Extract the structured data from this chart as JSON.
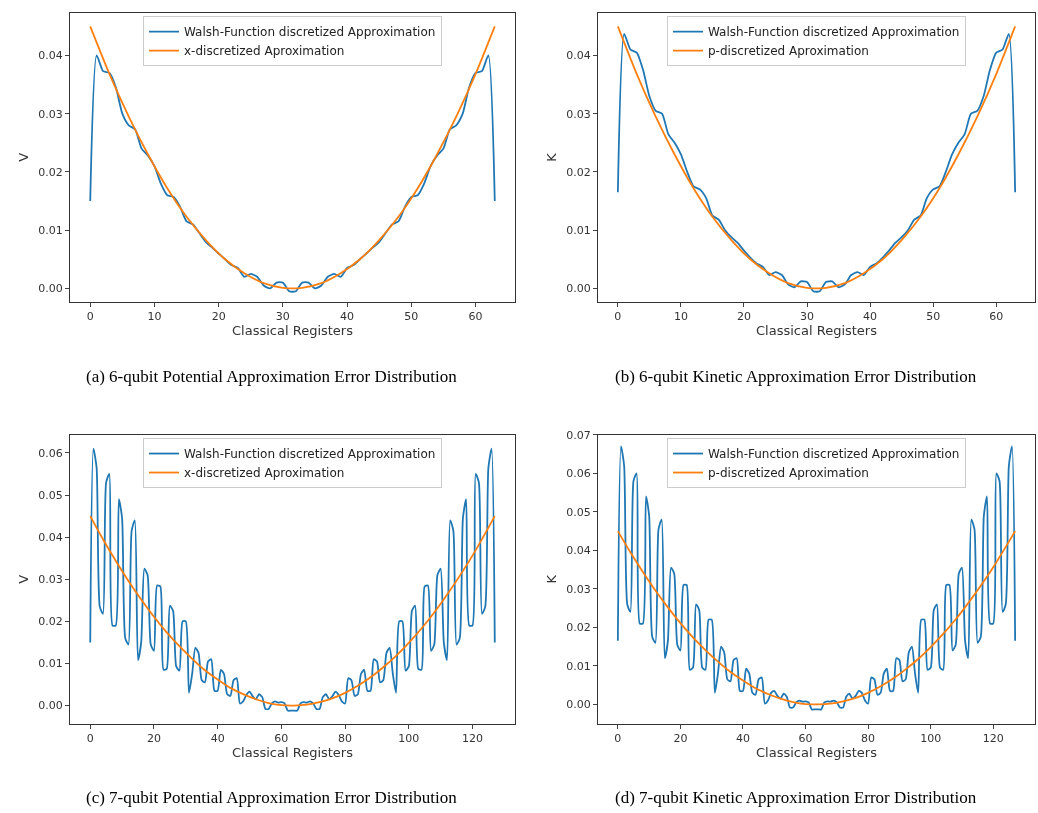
{
  "chart_data": [
    {
      "type": "line",
      "xlabel": "Classical Registers",
      "ylabel": "V",
      "xlim": [
        -3.15,
        66.15
      ],
      "xticks": [
        0,
        10,
        20,
        30,
        40,
        50,
        60
      ],
      "ylim": [
        -0.0023,
        0.0473
      ],
      "yticks": [
        {
          "value": 0,
          "label": "0.00"
        },
        {
          "value": 0.01,
          "label": "0.01"
        },
        {
          "value": 0.02,
          "label": "0.02"
        },
        {
          "value": 0.03,
          "label": "0.03"
        },
        {
          "value": 0.04,
          "label": "0.04"
        }
      ],
      "legend": "top",
      "annotations": [
        "(a) 6-qubit Potential Approximation Error Distribution"
      ],
      "x": [
        0,
        1,
        2,
        3,
        4,
        5,
        6,
        7,
        8,
        9,
        10,
        11,
        12,
        13,
        14,
        15,
        16,
        17,
        18,
        19,
        20,
        21,
        22,
        23,
        24,
        25,
        26,
        27,
        28,
        29,
        30,
        31,
        32,
        33,
        34,
        35,
        36,
        37,
        38,
        39,
        40,
        41,
        42,
        43,
        44,
        45,
        46,
        47,
        48,
        49,
        50,
        51,
        52,
        53,
        54,
        55,
        56,
        57,
        58,
        59,
        60,
        61,
        62,
        63
      ],
      "series": [
        {
          "name": "Walsh-Function discretized Approximation",
          "color": "#1f77b4",
          "values": [
            0.015,
            0.04,
            0.0373,
            0.037,
            0.0345,
            0.03,
            0.028,
            0.0273,
            0.024,
            0.0228,
            0.021,
            0.018,
            0.016,
            0.0157,
            0.014,
            0.0115,
            0.011,
            0.0095,
            0.008,
            0.007,
            0.006,
            0.005,
            0.004,
            0.0035,
            0.002,
            0.0025,
            0.002,
            0.0005,
            0.0,
            0.001,
            0.001,
            -0.0005,
            -0.0005,
            0.001,
            0.001,
            0.0,
            0.0005,
            0.002,
            0.0025,
            0.002,
            0.0035,
            0.004,
            0.005,
            0.006,
            0.007,
            0.008,
            0.0095,
            0.011,
            0.0115,
            0.014,
            0.0157,
            0.016,
            0.018,
            0.021,
            0.0228,
            0.024,
            0.0273,
            0.028,
            0.03,
            0.0345,
            0.037,
            0.0373,
            0.04,
            0.015
          ]
        },
        {
          "name": "x-discretized Aproximation",
          "color": "#ff7f0e",
          "x": [
            0,
            3,
            6,
            9,
            12,
            15,
            18,
            21,
            24,
            27,
            30,
            33,
            36,
            39,
            42,
            45,
            48,
            51,
            54,
            57,
            60,
            63
          ],
          "values": [
            0.045,
            0.0368,
            0.0295,
            0.023,
            0.0172,
            0.0123,
            0.0083,
            0.005,
            0.0026,
            0.0009,
            0.0001,
            0.0001,
            0.0009,
            0.0026,
            0.005,
            0.0083,
            0.0123,
            0.0172,
            0.023,
            0.0295,
            0.0368,
            0.045
          ]
        }
      ]
    },
    {
      "type": "line",
      "xlabel": "Classical Registers",
      "ylabel": "K",
      "xlim": [
        -3.15,
        66.15
      ],
      "xticks": [
        0,
        10,
        20,
        30,
        40,
        50,
        60
      ],
      "ylim": [
        -0.0023,
        0.0473
      ],
      "yticks": [
        {
          "value": 0,
          "label": "0.00"
        },
        {
          "value": 0.01,
          "label": "0.01"
        },
        {
          "value": 0.02,
          "label": "0.02"
        },
        {
          "value": 0.03,
          "label": "0.03"
        },
        {
          "value": 0.04,
          "label": "0.04"
        }
      ],
      "legend": "top",
      "annotations": [
        "(b) 6-qubit Kinetic Approximation Error Distribution"
      ],
      "x": [
        0,
        1,
        2,
        3,
        4,
        5,
        6,
        7,
        8,
        9,
        10,
        11,
        12,
        13,
        14,
        15,
        16,
        17,
        18,
        19,
        20,
        21,
        22,
        23,
        24,
        25,
        26,
        27,
        28,
        29,
        30,
        31,
        32,
        33,
        34,
        35,
        36,
        37,
        38,
        39,
        40,
        41,
        42,
        43,
        44,
        45,
        46,
        47,
        48,
        49,
        50,
        51,
        52,
        53,
        54,
        55,
        56,
        57,
        58,
        59,
        60,
        61,
        62,
        63
      ],
      "series": [
        {
          "name": "Walsh-Function discretized Approximation",
          "color": "#1f77b4",
          "values": [
            0.0165,
            0.0437,
            0.041,
            0.0405,
            0.0375,
            0.033,
            0.0305,
            0.03,
            0.0265,
            0.025,
            0.023,
            0.02,
            0.0175,
            0.017,
            0.0155,
            0.0125,
            0.0118,
            0.01,
            0.0088,
            0.0078,
            0.0065,
            0.0053,
            0.0043,
            0.0037,
            0.0023,
            0.0028,
            0.0023,
            0.0007,
            0.0002,
            0.0012,
            0.0011,
            -0.0005,
            -0.0005,
            0.0011,
            0.0012,
            0.0002,
            0.0007,
            0.0023,
            0.0028,
            0.0023,
            0.0037,
            0.0043,
            0.0053,
            0.0065,
            0.0078,
            0.0088,
            0.01,
            0.0118,
            0.0125,
            0.0155,
            0.017,
            0.0175,
            0.02,
            0.023,
            0.025,
            0.0265,
            0.03,
            0.0305,
            0.033,
            0.0375,
            0.0405,
            0.041,
            0.0437,
            0.0165
          ]
        },
        {
          "name": "p-discretized Aproximation",
          "color": "#ff7f0e",
          "x": [
            0,
            3,
            6,
            9,
            12,
            15,
            18,
            21,
            24,
            27,
            30,
            33,
            36,
            39,
            42,
            45,
            48,
            51,
            54,
            57,
            60,
            63
          ],
          "values": [
            0.045,
            0.0368,
            0.0295,
            0.023,
            0.0172,
            0.0123,
            0.0083,
            0.005,
            0.0026,
            0.0009,
            0.0001,
            0.0001,
            0.0009,
            0.0026,
            0.005,
            0.0083,
            0.0123,
            0.0172,
            0.023,
            0.0295,
            0.0368,
            0.045
          ]
        }
      ]
    },
    {
      "type": "line",
      "xlabel": "Classical Registers",
      "ylabel": "V",
      "xlim": [
        -6.35,
        133.35
      ],
      "xticks": [
        0,
        20,
        40,
        60,
        80,
        100,
        120
      ],
      "ylim": [
        -0.0043,
        0.0643
      ],
      "yticks": [
        {
          "value": 0,
          "label": "0.00"
        },
        {
          "value": 0.01,
          "label": "0.01"
        },
        {
          "value": 0.02,
          "label": "0.02"
        },
        {
          "value": 0.03,
          "label": "0.03"
        },
        {
          "value": 0.04,
          "label": "0.04"
        },
        {
          "value": 0.05,
          "label": "0.05"
        },
        {
          "value": 0.06,
          "label": "0.06"
        }
      ],
      "legend": "top",
      "annotations": [
        "(c) 7-qubit Potential Approximation Error Distribution"
      ],
      "x": [
        0,
        1,
        2,
        3,
        4,
        5,
        6,
        7,
        8,
        9,
        10,
        11,
        12,
        13,
        14,
        15,
        16,
        17,
        18,
        19,
        20,
        21,
        22,
        23,
        24,
        25,
        26,
        27,
        28,
        29,
        30,
        31,
        32,
        33,
        34,
        35,
        36,
        37,
        38,
        39,
        40,
        41,
        42,
        43,
        44,
        45,
        46,
        47,
        48,
        49,
        50,
        51,
        52,
        53,
        54,
        55,
        56,
        57,
        58,
        59,
        60,
        61,
        62,
        63,
        64,
        65,
        66,
        67,
        68,
        69,
        70,
        71,
        72,
        73,
        74,
        75,
        76,
        77,
        78,
        79,
        80,
        81,
        82,
        83,
        84,
        85,
        86,
        87,
        88,
        89,
        90,
        91,
        92,
        93,
        94,
        95,
        96,
        97,
        98,
        99,
        100,
        101,
        102,
        103,
        104,
        105,
        106,
        107,
        108,
        109,
        110,
        111,
        112,
        113,
        114,
        115,
        116,
        117,
        118,
        119,
        120,
        121,
        122,
        123,
        124,
        125,
        126,
        127
      ],
      "series": [
        {
          "name": "Walsh-Function discretized Approximation",
          "color": "#1f77b4",
          "values": [
            0.015,
            0.061,
            0.0565,
            0.0235,
            0.0218,
            0.053,
            0.055,
            0.019,
            0.019,
            0.049,
            0.0445,
            0.016,
            0.0145,
            0.0415,
            0.044,
            0.0108,
            0.015,
            0.0325,
            0.031,
            0.0145,
            0.013,
            0.0285,
            0.0283,
            0.0085,
            0.0087,
            0.0237,
            0.0225,
            0.0093,
            0.0083,
            0.02,
            0.02,
            0.003,
            0.0075,
            0.0137,
            0.0125,
            0.006,
            0.0055,
            0.0105,
            0.011,
            0.0035,
            0.0035,
            0.0085,
            0.0075,
            0.0027,
            0.0023,
            0.006,
            0.0065,
            0.0005,
            0.001,
            0.0025,
            0.0033,
            0.0022,
            0.0015,
            0.0027,
            0.002,
            -0.0008,
            -0.0008,
            0.0005,
            0.001,
            0.0007,
            0.0008,
            0.0005,
            -0.0012,
            -0.0012,
            -0.0012,
            -0.0012,
            0.0005,
            0.0008,
            0.0007,
            0.001,
            0.0005,
            -0.0008,
            -0.0008,
            0.002,
            0.0027,
            0.0015,
            0.0022,
            0.0033,
            0.0025,
            0.001,
            0.0005,
            0.0065,
            0.006,
            0.0023,
            0.0027,
            0.0075,
            0.0085,
            0.0035,
            0.0035,
            0.011,
            0.0105,
            0.0055,
            0.006,
            0.0125,
            0.0137,
            0.0075,
            0.003,
            0.02,
            0.02,
            0.0083,
            0.0093,
            0.0225,
            0.0237,
            0.0087,
            0.0085,
            0.0283,
            0.0285,
            0.013,
            0.0145,
            0.031,
            0.0325,
            0.015,
            0.0108,
            0.044,
            0.0415,
            0.0145,
            0.016,
            0.0445,
            0.049,
            0.019,
            0.019,
            0.055,
            0.053,
            0.0218,
            0.0235,
            0.0565,
            0.061,
            0.015
          ]
        },
        {
          "name": "x-discretized Aproximation",
          "color": "#ff7f0e",
          "x": [
            0,
            4,
            8,
            12,
            16,
            20,
            24,
            28,
            32,
            36,
            40,
            44,
            48,
            52,
            56,
            60,
            64,
            68,
            72,
            76,
            80,
            84,
            88,
            92,
            96,
            100,
            104,
            108,
            112,
            116,
            120,
            124,
            127
          ],
          "values": [
            0.045,
            0.0395,
            0.0344,
            0.0296,
            0.0252,
            0.0211,
            0.0174,
            0.0141,
            0.0111,
            0.0084,
            0.0062,
            0.0042,
            0.0027,
            0.0015,
            0.0006,
            0.0001,
            0.0,
            0.0002,
            0.0008,
            0.0017,
            0.003,
            0.0047,
            0.0067,
            0.0091,
            0.0118,
            0.0149,
            0.0183,
            0.0221,
            0.0263,
            0.0308,
            0.0356,
            0.0409,
            0.045
          ]
        }
      ]
    },
    {
      "type": "line",
      "xlabel": "Classical Registers",
      "ylabel": "K",
      "xlim": [
        -6.35,
        133.35
      ],
      "xticks": [
        0,
        20,
        40,
        60,
        80,
        100,
        120
      ],
      "ylim": [
        -0.005,
        0.07
      ],
      "yticks": [
        {
          "value": 0,
          "label": "0.00"
        },
        {
          "value": 0.01,
          "label": "0.01"
        },
        {
          "value": 0.02,
          "label": "0.02"
        },
        {
          "value": 0.03,
          "label": "0.03"
        },
        {
          "value": 0.04,
          "label": "0.04"
        },
        {
          "value": 0.05,
          "label": "0.05"
        },
        {
          "value": 0.06,
          "label": "0.06"
        },
        {
          "value": 0.07,
          "label": "0.07"
        }
      ],
      "legend": "top",
      "annotations": [
        "(d) 7-qubit Kinetic Approximation Error Distribution"
      ],
      "x": [
        0,
        1,
        2,
        3,
        4,
        5,
        6,
        7,
        8,
        9,
        10,
        11,
        12,
        13,
        14,
        15,
        16,
        17,
        18,
        19,
        20,
        21,
        22,
        23,
        24,
        25,
        26,
        27,
        28,
        29,
        30,
        31,
        32,
        33,
        34,
        35,
        36,
        37,
        38,
        39,
        40,
        41,
        42,
        43,
        44,
        45,
        46,
        47,
        48,
        49,
        50,
        51,
        52,
        53,
        54,
        55,
        56,
        57,
        58,
        59,
        60,
        61,
        62,
        63,
        64,
        65,
        66,
        67,
        68,
        69,
        70,
        71,
        72,
        73,
        74,
        75,
        76,
        77,
        78,
        79,
        80,
        81,
        82,
        83,
        84,
        85,
        86,
        87,
        88,
        89,
        90,
        91,
        92,
        93,
        94,
        95,
        96,
        97,
        98,
        99,
        100,
        101,
        102,
        103,
        104,
        105,
        106,
        107,
        108,
        109,
        110,
        111,
        112,
        113,
        114,
        115,
        116,
        117,
        118,
        119,
        120,
        121,
        122,
        123,
        124,
        125,
        126,
        127
      ],
      "series": [
        {
          "name": "Walsh-Function discretized Approximation",
          "color": "#1f77b4",
          "values": [
            0.0165,
            0.067,
            0.062,
            0.026,
            0.024,
            0.058,
            0.06,
            0.021,
            0.021,
            0.054,
            0.049,
            0.0175,
            0.016,
            0.0455,
            0.048,
            0.012,
            0.0165,
            0.0355,
            0.034,
            0.0155,
            0.014,
            0.031,
            0.031,
            0.009,
            0.0095,
            0.026,
            0.0245,
            0.0095,
            0.009,
            0.022,
            0.022,
            0.003,
            0.008,
            0.015,
            0.0135,
            0.0065,
            0.006,
            0.0115,
            0.012,
            0.0035,
            0.0035,
            0.0093,
            0.008,
            0.003,
            0.0025,
            0.0065,
            0.007,
            0.0002,
            0.001,
            0.003,
            0.0035,
            0.0022,
            0.0015,
            0.0028,
            0.002,
            -0.0008,
            -0.0008,
            0.0005,
            0.001,
            0.0007,
            0.0008,
            0.0005,
            -0.0013,
            -0.0013,
            -0.0013,
            -0.0013,
            0.0005,
            0.0008,
            0.0007,
            0.001,
            0.0005,
            -0.0008,
            -0.0008,
            0.002,
            0.0028,
            0.0015,
            0.0022,
            0.0035,
            0.003,
            0.001,
            0.0002,
            0.007,
            0.0065,
            0.0025,
            0.003,
            0.008,
            0.0093,
            0.0035,
            0.0035,
            0.012,
            0.0115,
            0.006,
            0.0065,
            0.0135,
            0.015,
            0.008,
            0.003,
            0.022,
            0.022,
            0.009,
            0.0095,
            0.0245,
            0.026,
            0.0095,
            0.009,
            0.031,
            0.031,
            0.014,
            0.0155,
            0.034,
            0.0355,
            0.0165,
            0.012,
            0.048,
            0.0455,
            0.016,
            0.0175,
            0.049,
            0.054,
            0.021,
            0.021,
            0.06,
            0.058,
            0.024,
            0.026,
            0.062,
            0.067,
            0.0165
          ]
        },
        {
          "name": "p-discretized Aproximation",
          "color": "#ff7f0e",
          "x": [
            0,
            4,
            8,
            12,
            16,
            20,
            24,
            28,
            32,
            36,
            40,
            44,
            48,
            52,
            56,
            60,
            64,
            68,
            72,
            76,
            80,
            84,
            88,
            92,
            96,
            100,
            104,
            108,
            112,
            116,
            120,
            124,
            127
          ],
          "values": [
            0.045,
            0.0395,
            0.0344,
            0.0296,
            0.0252,
            0.0211,
            0.0174,
            0.0141,
            0.0111,
            0.0084,
            0.0062,
            0.0042,
            0.0027,
            0.0015,
            0.0006,
            0.0001,
            0.0,
            0.0002,
            0.0008,
            0.0017,
            0.003,
            0.0047,
            0.0067,
            0.0091,
            0.0118,
            0.0149,
            0.0183,
            0.0221,
            0.0263,
            0.0308,
            0.0356,
            0.0409,
            0.045
          ]
        }
      ]
    }
  ]
}
